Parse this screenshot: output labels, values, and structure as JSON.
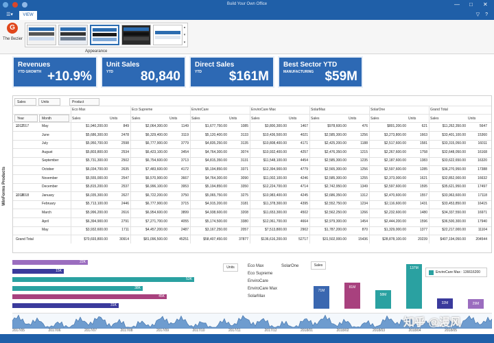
{
  "window": {
    "title": "Build Your Own Office",
    "min": "—",
    "max": "□",
    "close": "✕"
  },
  "ribbon": {
    "file_icon": "menu-icon",
    "tab_view": "VIEW",
    "logo_letter": "G",
    "logo_label": "The Bezier",
    "group_label": "Appearance",
    "help_icons": "▽ ?"
  },
  "colors": {
    "accent": "#1f5fa8",
    "kpi": "#2d69b4",
    "teal": "#2aa1a1",
    "purple": "#9b6dbf",
    "navy": "#3a3a9c",
    "magenta": "#a8417e",
    "blue": "#3a67b0"
  },
  "kpis": [
    {
      "title": "Revenues",
      "sub": "YTD GROWTH",
      "value": "+10.9%"
    },
    {
      "title": "Unit Sales",
      "sub": "YTD",
      "value": "80,840"
    },
    {
      "title": "Direct Sales",
      "sub": "YTD",
      "value": "$161M"
    },
    {
      "title": "Best Sector YTD",
      "sub": "MANUFACTURING",
      "value": "$59M"
    }
  ],
  "sidebar_title": "WinForms Products",
  "pivot": {
    "data_chips": [
      "Sales",
      "Units"
    ],
    "column_chip": "Product",
    "row_chips": [
      "Year",
      "Month"
    ],
    "products": [
      "Eco Max",
      "Eco Supreme",
      "EnviroCare",
      "EnviroCare Max",
      "SolarMax",
      "SolarOne",
      "Grand Total"
    ],
    "subheaders": [
      "Sales",
      "Units"
    ],
    "groups": [
      {
        "year": "2017",
        "rows": [
          {
            "month": "May",
            "cells": [
              "$1,940,200.00",
              "849",
              "$2,064,300.00",
              "1149",
              "$1,677,750.00",
              "1085",
              "$3,800,300.00",
              "1467",
              "$978,600.00",
              "476",
              "$801,200.00",
              "621",
              "$11,262,350.00",
              "5647"
            ]
          },
          {
            "month": "June",
            "cells": [
              "$5,686,300.00",
              "2478",
              "$6,329,400.00",
              "3119",
              "$5,120,400.00",
              "3133",
              "$10,436,500.00",
              "4021",
              "$2,585,300.00",
              "1256",
              "$3,273,800.00",
              "1663",
              "$33,401,100.00",
              "15360"
            ]
          },
          {
            "month": "July",
            "cells": [
              "$5,950,700.00",
              "2598",
              "$6,777,900.00",
              "3779",
              "$4,835,250.00",
              "3135",
              "$10,808,400.00",
              "4171",
              "$2,425,200.00",
              "1188",
              "$2,517,600.00",
              "1581",
              "$33,315,050.00",
              "16011"
            ]
          },
          {
            "month": "August",
            "cells": [
              "$5,803,800.00",
              "2534",
              "$6,423,100.00",
              "3454",
              "$4,764,300.00",
              "3074",
              "$10,932,400.00",
              "4257",
              "$2,476,350.00",
              "1215",
              "$2,267,600.00",
              "1758",
              "$32,648,050.00",
              "16168"
            ]
          },
          {
            "month": "September",
            "cells": [
              "$5,731,300.00",
              "2502",
              "$6,754,600.00",
              "3713",
              "$4,815,350.00",
              "3131",
              "$11,548,100.00",
              "4454",
              "$2,585,300.00",
              "1235",
              "$2,187,600.00",
              "1383",
              "$33,622,650.00",
              "16320"
            ]
          },
          {
            "month": "October",
            "cells": [
              "$6,034,700.00",
              "2635",
              "$7,483,600.00",
              "4172",
              "$5,194,850.00",
              "3371",
              "$12,394,900.00",
              "4779",
              "$2,565,300.00",
              "1256",
              "$2,597,600.00",
              "1285",
              "$36,270,950.00",
              "17388"
            ]
          },
          {
            "month": "November",
            "cells": [
              "$5,555,000.00",
              "2547",
              "$6,570,900.00",
              "3667",
              "$4,764,300.00",
              "3090",
              "$11,002,100.00",
              "4246",
              "$2,585,300.00",
              "1255",
              "$2,373,000.00",
              "1621",
              "$32,852,000.00",
              "16632"
            ]
          },
          {
            "month": "December",
            "cells": [
              "$5,815,200.00",
              "2537",
              "$6,996,100.00",
              "3953",
              "$5,194,850.00",
              "3350",
              "$12,224,700.00",
              "4714",
              "$2,742,950.00",
              "1349",
              "$2,597,600.00",
              "1595",
              "$35,621,950.00",
              "17497"
            ]
          }
        ]
      },
      {
        "year": "2018",
        "rows": [
          {
            "month": "January",
            "cells": [
              "$6,035,300.00",
              "2627",
              "$6,722,200.00",
              "3750",
              "$5,065,750.00",
              "3275",
              "$10,983,400.00",
              "4245",
              "$2,686,350.00",
              "1312",
              "$2,470,600.00",
              "1557",
              "$33,963,600.00",
              "17118"
            ]
          },
          {
            "month": "February",
            "cells": [
              "$5,713,100.00",
              "2446",
              "$6,777,900.00",
              "3715",
              "$4,915,200.00",
              "3181",
              "$11,378,300.00",
              "4395",
              "$2,552,750.00",
              "1234",
              "$2,116,600.00",
              "1431",
              "$33,453,850.00",
              "16415"
            ]
          },
          {
            "month": "March",
            "cells": [
              "$5,996,200.00",
              "2616",
              "$6,954,600.00",
              "3899",
              "$4,938,600.00",
              "3208",
              "$11,653,300.00",
              "4502",
              "$2,562,250.00",
              "1266",
              "$2,232,600.00",
              "1480",
              "$34,337,550.00",
              "16971"
            ]
          },
          {
            "month": "April",
            "cells": [
              "$6,394,900.00",
              "2791",
              "$7,271,700.00",
              "4055",
              "$5,174,500.00",
              "3380",
              "$12,061,700.00",
              "4664",
              "$2,979,300.00",
              "1454",
              "$2,444,200.00",
              "1596",
              "$36,500,300.00",
              "17940"
            ]
          },
          {
            "month": "May",
            "cells": [
              "$3,932,600.00",
              "1711",
              "$4,457,200.00",
              "2487",
              "$3,167,250.00",
              "2057",
              "$7,513,800.00",
              "2902",
              "$1,787,200.00",
              "870",
              "$1,329,000.00",
              "1377",
              "$22,217,000.00",
              "11104"
            ]
          }
        ]
      }
    ],
    "grand_total_label": "Grand Total",
    "grand_total": [
      "$70,693,800.00",
      "30914",
      "$81,096,500.00",
      "45251",
      "$58,407,450.00",
      "37877",
      "$136,616,200.00",
      "52717",
      "$31,502,000.00",
      "15436",
      "$28,878,100.00",
      "20239",
      "$407,194,050.00",
      "204544"
    ]
  },
  "chart_data": [
    {
      "type": "bar",
      "orientation": "horizontal",
      "legend_label": "Units",
      "series": [
        {
          "value_label": "22K",
          "value": 22,
          "color": "#9b6dbf"
        },
        {
          "value_label": "15K",
          "value": 15,
          "color": "#3a3a9c"
        },
        {
          "value_label": "53K",
          "value": 53,
          "color": "#2aa1a1"
        },
        {
          "value_label": "38K",
          "value": 38,
          "color": "#2aa1a1"
        },
        {
          "value_label": "45K",
          "value": 45,
          "color": "#a8417e"
        },
        {
          "value_label": "31K",
          "value": 31,
          "color": "#3a3a9c"
        }
      ]
    },
    {
      "type": "list",
      "items": [
        "Eco Max",
        "SolarOne",
        "Eco Supreme",
        "EnviroCare",
        "EnviroCare Max",
        "SolarMax"
      ]
    },
    {
      "type": "bar",
      "orientation": "vertical",
      "label": "Sales",
      "legend": "EnviroCare Max : 136616200",
      "series": [
        {
          "value_label": "71M",
          "value": 71,
          "color": "#3a67b0"
        },
        {
          "value_label": "81M",
          "value": 81,
          "color": "#a8417e"
        },
        {
          "value_label": "58M",
          "value": 58,
          "color": "#2aa1a1"
        },
        {
          "value_label": "137M",
          "value": 137,
          "color": "#2aa1a1"
        },
        {
          "value_label": "32M",
          "value": 32,
          "color": "#3a3a9c"
        },
        {
          "value_label": "29M",
          "value": 29,
          "color": "#9b6dbf"
        }
      ]
    },
    {
      "type": "area",
      "x_ticks": [
        "2017/05",
        "2017/06",
        "2017/07",
        "2017/08",
        "2017/09",
        "2017/10",
        "2017/11",
        "2017/12",
        "2018/01",
        "2018/02",
        "2018/03",
        "2018/04",
        "2018/05"
      ]
    }
  ],
  "watermark": "知乎 @漫风"
}
